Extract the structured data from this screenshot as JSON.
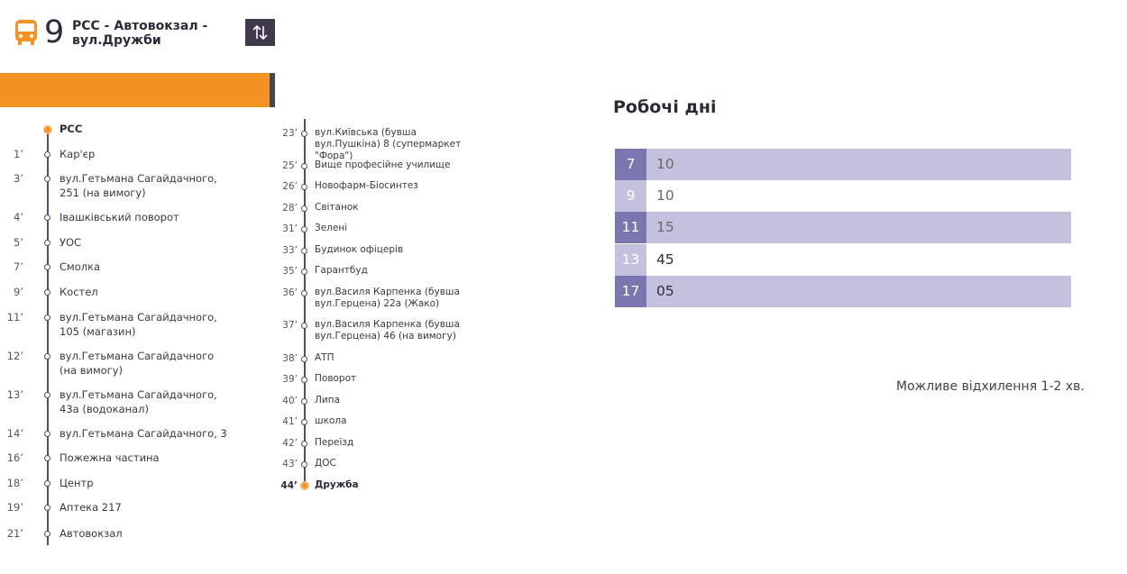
{
  "header": {
    "route_number": "9",
    "route_name": "РСС - Автовокзал - вул.Дружби",
    "swap_icon": "swap-direction-icon",
    "bus_icon": "bus-icon"
  },
  "colors": {
    "accent_orange": "#f29324",
    "dark_purple": "#3e3a4c",
    "hour_dark": "#7a76b0",
    "row_shade": "#c3c1dd"
  },
  "stops_col1": [
    {
      "time": "",
      "name": "РСС"
    },
    {
      "time": "1’",
      "name": "Кар'єр"
    },
    {
      "time": "3’",
      "name": "вул.Гетьмана Сагайдачного, 251 (на вимогу)"
    },
    {
      "time": "4’",
      "name": "Івашківський поворот"
    },
    {
      "time": "5’",
      "name": "УОС"
    },
    {
      "time": "7’",
      "name": "Смолка"
    },
    {
      "time": "9’",
      "name": "Костел"
    },
    {
      "time": "11’",
      "name": "вул.Гетьмана Сагайдачного, 105 (магазин)"
    },
    {
      "time": "12’",
      "name": "вул.Гетьмана Сагайдачного (на вимогу)"
    },
    {
      "time": "13’",
      "name": "вул.Гетьмана Сагайдачного, 43а (водоканал)"
    },
    {
      "time": "14’",
      "name": "вул.Гетьмана Сагайдачного, 3"
    },
    {
      "time": "16’",
      "name": "Пожежна частина"
    },
    {
      "time": "18’",
      "name": "Центр"
    },
    {
      "time": "19’",
      "name": "Аптека 217"
    },
    {
      "time": "21’",
      "name": "Автовокзал"
    }
  ],
  "stops_col2": [
    {
      "time": "23’",
      "name": "вул.Київська (бувша вул.Пушкіна) 8 (супермаркет \"Фора\")"
    },
    {
      "time": "25’",
      "name": "Вище професійне училище"
    },
    {
      "time": "26’",
      "name": "Новофарм-Біосинтез"
    },
    {
      "time": "28’",
      "name": "Світанок"
    },
    {
      "time": "31’",
      "name": "Зелені"
    },
    {
      "time": "33’",
      "name": "Будинок офіцерів"
    },
    {
      "time": "35’",
      "name": "Гарантбуд"
    },
    {
      "time": "36’",
      "name": "вул.Василя Карпенка (бувша вул.Герцена) 22а (Жако)"
    },
    {
      "time": "37’",
      "name": "вул.Василя Карпенка (бувша вул.Герцена) 46 (на вимогу)"
    },
    {
      "time": "38’",
      "name": "АТП"
    },
    {
      "time": "39’",
      "name": "Поворот"
    },
    {
      "time": "40’",
      "name": "Липа"
    },
    {
      "time": "41’",
      "name": "школа"
    },
    {
      "time": "42’",
      "name": "Переїзд"
    },
    {
      "time": "43’",
      "name": "ДОС"
    },
    {
      "time": "44’",
      "name": "Дружба"
    }
  ],
  "timetable": {
    "title": "Робочі дні",
    "rows": [
      {
        "hour": "7",
        "minutes": "10"
      },
      {
        "hour": "9",
        "minutes": "10"
      },
      {
        "hour": "11",
        "minutes": "15"
      },
      {
        "hour": "13",
        "minutes": "45"
      },
      {
        "hour": "17",
        "minutes": "05"
      }
    ],
    "note": "Можливе відхилення 1-2 хв."
  }
}
